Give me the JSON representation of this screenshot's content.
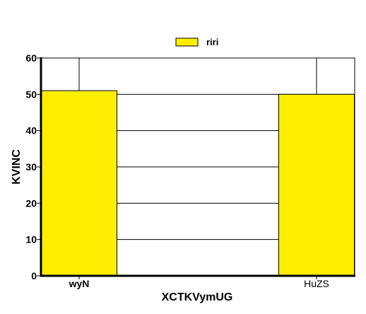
{
  "chart_data": {
    "type": "bar",
    "categories": [
      "wyN",
      "HuZS"
    ],
    "category_label_weights": [
      "bold",
      "normal"
    ],
    "series": [
      {
        "name": "riri",
        "values": [
          51,
          50
        ],
        "color": "#FFEE00"
      }
    ],
    "xlabel": "XCTKVymUG",
    "ylabel": "KVINC",
    "ylim": [
      0,
      60
    ],
    "yticks": [
      0,
      10,
      20,
      30,
      40,
      50,
      60
    ],
    "grid": true,
    "legend_position": "top-center"
  },
  "colors": {
    "bar_fill": "#FFEE00",
    "axis": "#000000",
    "grid": "#000000",
    "background": "#ffffff"
  }
}
